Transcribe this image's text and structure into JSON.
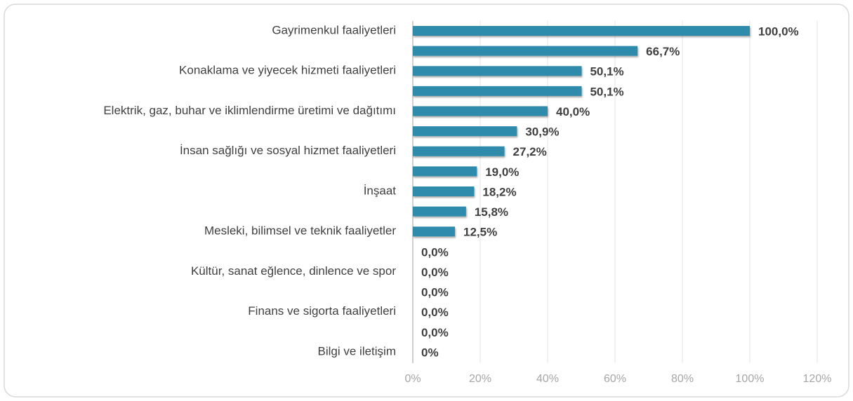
{
  "chart_data": {
    "type": "bar",
    "orientation": "horizontal",
    "categories": [
      "Gayrimenkul faaliyetleri",
      null,
      "Konaklama ve yiyecek hizmeti faaliyetleri",
      null,
      "Elektrik, gaz, buhar ve iklimlendirme üretimi ve dağıtımı",
      null,
      "İnsan sağlığı ve sosyal hizmet faaliyetleri",
      null,
      "İnşaat",
      null,
      "Mesleki, bilimsel ve teknik faaliyetler",
      null,
      "Kültür, sanat eğlence, dinlence ve spor",
      null,
      "Finans ve sigorta faaliyetleri",
      null,
      "Bilgi ve iletişim"
    ],
    "values": [
      100,
      66.7,
      50.1,
      50.1,
      40,
      30.9,
      27.2,
      19,
      18.2,
      15.8,
      12.5,
      0,
      0,
      0,
      0,
      0,
      0
    ],
    "value_labels": [
      "100,0%",
      "66,7%",
      "50,1%",
      "50,1%",
      "40,0%",
      "30,9%",
      "27,2%",
      "19,0%",
      "18,2%",
      "15,8%",
      "12,5%",
      "0,0%",
      "0,0%",
      "0,0%",
      "0,0%",
      "0,0%",
      "0%"
    ],
    "color": "#2e8bab",
    "xlim": [
      0,
      120
    ],
    "xticks": [
      {
        "value": 0,
        "label": "0%"
      },
      {
        "value": 20,
        "label": "20%"
      },
      {
        "value": 40,
        "label": "40%"
      },
      {
        "value": 60,
        "label": "60%"
      },
      {
        "value": 80,
        "label": "80%"
      },
      {
        "value": 100,
        "label": "100%"
      },
      {
        "value": 120,
        "label": "120%"
      }
    ],
    "grid": true
  }
}
